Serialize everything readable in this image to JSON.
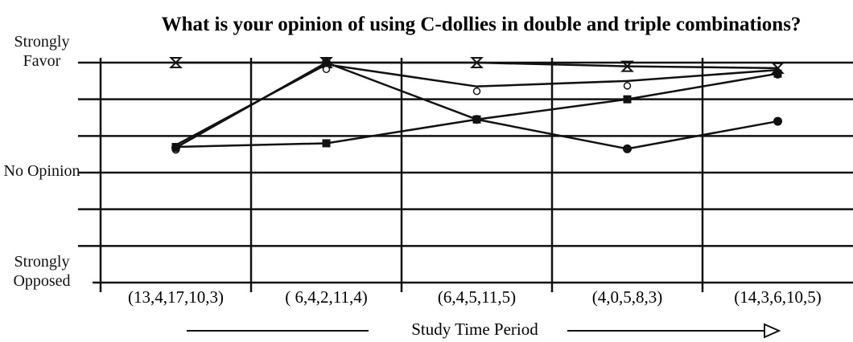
{
  "chart_data": {
    "type": "line",
    "title": "What is your opinion of using C-dollies in double and triple combinations?",
    "x_label": "Study Time Period",
    "categories": [
      "(13,4,17,10,3)",
      "( 6,4,2,11,4)",
      "(6,4,5,11,5)",
      "(4,0,5,8,3)",
      "(14,3,6,10,5)"
    ],
    "ylim": [
      1,
      7
    ],
    "yticks": [
      {
        "value": 7,
        "label": "Strongly Favor"
      },
      {
        "value": 4,
        "label": "No Opinion"
      },
      {
        "value": 1,
        "label": "Strongly Opposed"
      }
    ],
    "minor_yticks": [
      2,
      3,
      5,
      6
    ],
    "grid": true,
    "series": [
      {
        "color": "#111111",
        "marker": "hourglass",
        "values": [
          7,
          7,
          7,
          6.9,
          6.85
        ]
      },
      {
        "color": "#111111",
        "marker": "open-circle",
        "values": [
          4.75,
          6.95,
          6.35,
          6.5,
          6.8
        ]
      },
      {
        "color": "#111111",
        "marker": "square",
        "values": [
          4.7,
          4.8,
          5.45,
          6,
          6.7
        ]
      },
      {
        "color": "#111111",
        "marker": "filled-circle",
        "values": [
          4.68,
          7,
          5.45,
          4.65,
          5.4
        ]
      }
    ]
  }
}
